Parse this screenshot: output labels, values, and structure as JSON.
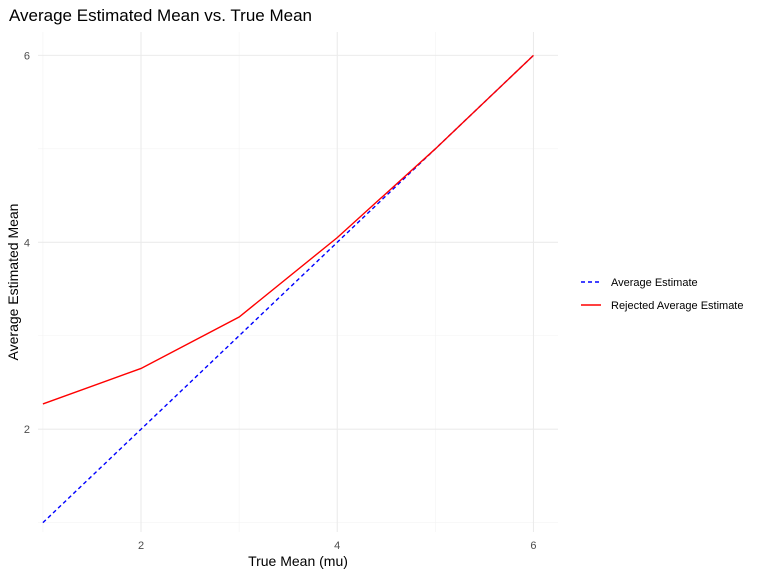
{
  "chart_data": {
    "type": "line",
    "title": "Average Estimated Mean vs. True Mean",
    "xlabel": "True Mean (mu)",
    "ylabel": "Average Estimated Mean",
    "xlim": [
      0.95,
      6.25
    ],
    "ylim": [
      0.9,
      6.25
    ],
    "x_ticks": [
      2,
      4,
      6
    ],
    "x_minor": [
      1,
      3,
      5
    ],
    "y_ticks": [
      2,
      4,
      6
    ],
    "y_minor": [
      1,
      3,
      5
    ],
    "grid": true,
    "legend_position": "right",
    "series": [
      {
        "name": "Average Estimate",
        "color": "#0000ff",
        "dash": "dashed",
        "x": [
          1,
          2,
          3,
          4,
          5,
          6
        ],
        "values": [
          1.0,
          2.0,
          3.0,
          4.0,
          5.0,
          6.0
        ]
      },
      {
        "name": "Rejected Average Estimate",
        "color": "#ff0000",
        "dash": "solid",
        "x": [
          1,
          2,
          3,
          4,
          5,
          6
        ],
        "values": [
          2.27,
          2.65,
          3.2,
          4.05,
          5.0,
          6.0
        ]
      }
    ]
  }
}
